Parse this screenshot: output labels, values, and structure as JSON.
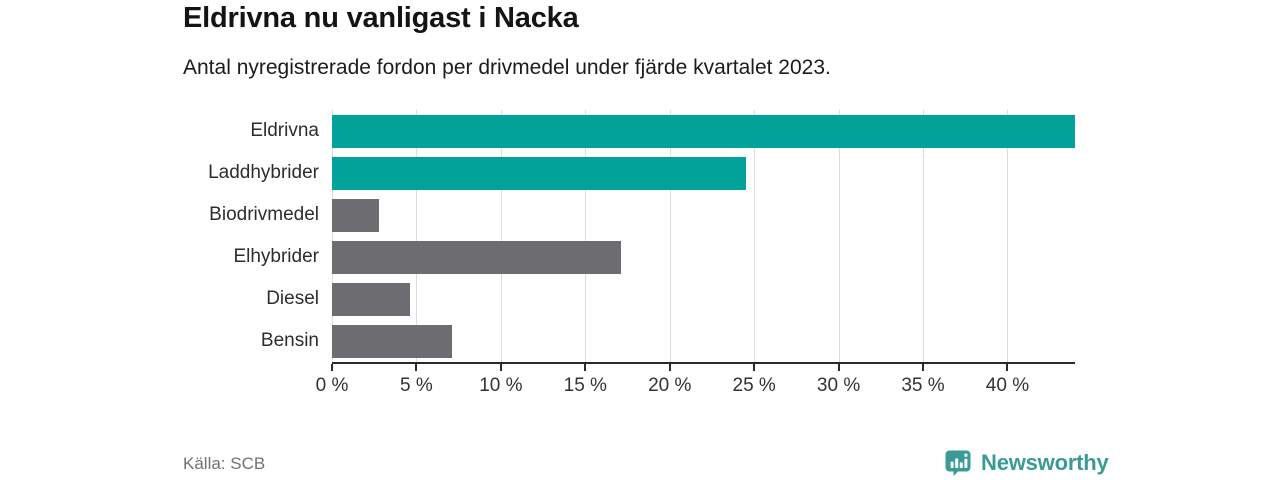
{
  "header": {
    "title": "Eldrivna nu vanligast i Nacka",
    "subtitle": "Antal nyregistrerade fordon per drivmedel under fjärde kvartalet 2023."
  },
  "footer": {
    "source": "Källa: SCB",
    "brand_name": "Newsworthy"
  },
  "colors": {
    "teal": "#00a29a",
    "gray": "#6d6c71",
    "brand_teal": "#3a9b96",
    "gridline": "#dcdcdc",
    "axis": "#2a2a2a"
  },
  "chart_data": {
    "type": "bar",
    "orientation": "horizontal",
    "title": "Eldrivna nu vanligast i Nacka",
    "subtitle": "Antal nyregistrerade fordon per drivmedel under fjärde kvartalet 2023.",
    "categories": [
      "Eldrivna",
      "Laddhybrider",
      "Biodrivmedel",
      "Elhybrider",
      "Diesel",
      "Bensin"
    ],
    "values": [
      44,
      24.5,
      2.8,
      17.1,
      4.6,
      7.1
    ],
    "bar_colors": [
      "#00a29a",
      "#00a29a",
      "#6d6c71",
      "#6d6c71",
      "#6d6c71",
      "#6d6c71"
    ],
    "unit": "%",
    "xlim": [
      0,
      44
    ],
    "xticks": [
      0,
      5,
      10,
      15,
      20,
      25,
      30,
      35,
      40
    ],
    "xtick_suffix": " %",
    "grid": true,
    "legend": false
  }
}
